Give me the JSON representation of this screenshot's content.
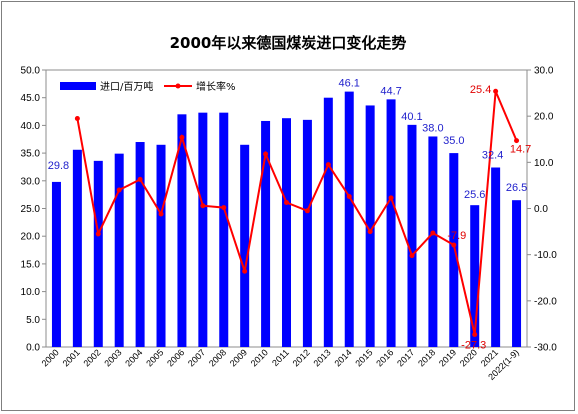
{
  "chart_data": {
    "type": "bar",
    "title": "2000年以来德国煤炭进口变化走势",
    "categories": [
      "2000",
      "2001",
      "2002",
      "2003",
      "2004",
      "2005",
      "2006",
      "2007",
      "2008",
      "2009",
      "2010",
      "2011",
      "2012",
      "2013",
      "2014",
      "2015",
      "2016",
      "2017",
      "2018",
      "2019",
      "2020",
      "2021",
      "2022(1-9)"
    ],
    "legend_position": "top-left",
    "grid": false,
    "series": [
      {
        "name": "进口/百万吨",
        "type": "bar",
        "axis": "left",
        "color": "#0000ff",
        "values": [
          29.8,
          35.6,
          33.6,
          34.9,
          37.0,
          36.5,
          42.0,
          42.3,
          42.3,
          36.5,
          40.8,
          41.3,
          41.0,
          45.0,
          46.1,
          43.6,
          44.7,
          40.1,
          38.0,
          35.0,
          25.6,
          32.4,
          26.5
        ]
      },
      {
        "name": "增长率%",
        "type": "line",
        "axis": "right",
        "color": "#ff0000",
        "values": [
          null,
          19.5,
          -5.5,
          4.0,
          6.3,
          -1.2,
          15.4,
          0.6,
          0.2,
          -13.6,
          11.8,
          1.3,
          -0.5,
          9.5,
          2.6,
          -5.0,
          2.3,
          -10.2,
          -5.3,
          -7.9,
          -27.3,
          25.4,
          14.7
        ]
      }
    ],
    "bar_labels": {
      "2000": "29.8",
      "2014": "46.1",
      "2016": "44.7",
      "2017": "40.1",
      "2018": "38.0",
      "2019": "35.0",
      "2020": "25.6",
      "2021": "32.4",
      "2022(1-9)": "26.5"
    },
    "line_labels": {
      "2019": "-7.9",
      "2020": "-27.3",
      "2021": "25.4",
      "2022(1-9)": "14.7"
    },
    "y_left": {
      "lim": [
        0,
        50
      ],
      "ticks": [
        "0.0",
        "5.0",
        "10.0",
        "15.0",
        "20.0",
        "25.0",
        "30.0",
        "35.0",
        "40.0",
        "45.0",
        "50.0"
      ]
    },
    "y_right": {
      "lim": [
        -30,
        30
      ],
      "ticks": [
        "-30.0",
        "-20.0",
        "-10.0",
        "0.0",
        "10.0",
        "20.0",
        "30.0"
      ]
    }
  }
}
